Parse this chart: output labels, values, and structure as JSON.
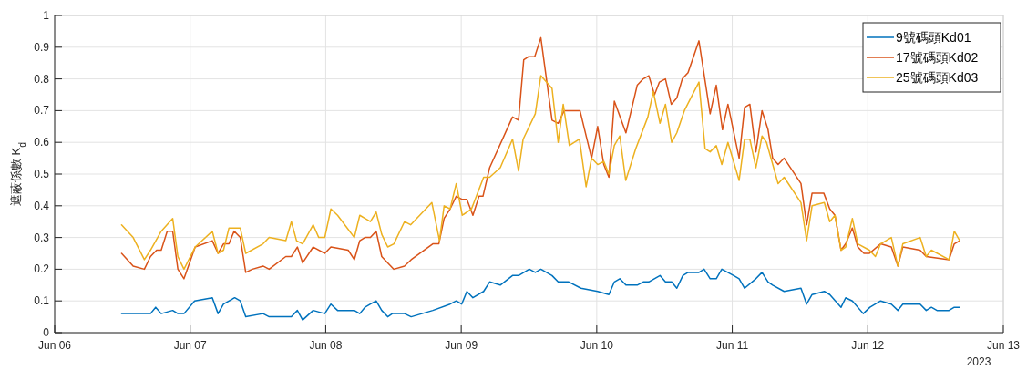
{
  "chart_data": {
    "type": "line",
    "ylabel": "遮蔽係數 K$_{d}$",
    "annotations": [
      "2023"
    ],
    "xlim": [
      "2023-06-06",
      "2023-06-13"
    ],
    "xticks": [
      {
        "value": "2023-06-06",
        "label": "Jun 06"
      },
      {
        "value": "2023-06-07",
        "label": "Jun 07"
      },
      {
        "value": "2023-06-08",
        "label": "Jun 08"
      },
      {
        "value": "2023-06-09",
        "label": "Jun 09"
      },
      {
        "value": "2023-06-10",
        "label": "Jun 10"
      },
      {
        "value": "2023-06-11",
        "label": "Jun 11"
      },
      {
        "value": "2023-06-12",
        "label": "Jun 12"
      },
      {
        "value": "2023-06-13",
        "label": "Jun 13"
      }
    ],
    "ylim": [
      0,
      1
    ],
    "yticks": [
      0,
      0.1,
      0.2,
      0.3,
      0.4,
      0.5,
      0.6,
      0.7,
      0.8,
      0.9,
      1
    ],
    "grid": true,
    "legend": "top right",
    "marker": "none",
    "line_style": "solid",
    "series": [
      {
        "name": "9號碼頭Kd01",
        "color": "#0072bd",
        "x": [
          "2023-06-06T11:51",
          "2023-06-06T15:53",
          "2023-06-06T16:58",
          "2023-06-06T17:53",
          "2023-06-06T18:52",
          "2023-06-06T20:54",
          "2023-06-06T21:49",
          "2023-06-06T22:54",
          "2023-06-07T00:47",
          "2023-06-07T03:55",
          "2023-06-07T04:56",
          "2023-06-07T05:54",
          "2023-06-07T07:53",
          "2023-06-07T08:52",
          "2023-06-07T09:50",
          "2023-06-07T12:54",
          "2023-06-07T13:59",
          "2023-06-07T17:55",
          "2023-06-07T18:59",
          "2023-06-07T19:55",
          "2023-06-07T21:47",
          "2023-06-07T23:50",
          "2023-06-08T00:55",
          "2023-06-08T02:06",
          "2023-06-08T05:04",
          "2023-06-08T06:02",
          "2023-06-08T06:57",
          "2023-06-08T07:55",
          "2023-06-08T08:56",
          "2023-06-08T09:55",
          "2023-06-08T10:59",
          "2023-06-08T11:48",
          "2023-06-08T13:57",
          "2023-06-08T15:08",
          "2023-06-08T18:58",
          "2023-06-08T22:02",
          "2023-06-08T23:07",
          "2023-06-09T00:05",
          "2023-06-09T01:00",
          "2023-06-09T02:04",
          "2023-06-09T03:58",
          "2023-06-09T05:02",
          "2023-06-09T06:55",
          "2023-06-09T09:05",
          "2023-06-09T10:09",
          "2023-06-09T12:03",
          "2023-06-09T13:07",
          "2023-06-09T14:06",
          "2023-06-09T16:05",
          "2023-06-09T17:10",
          "2023-06-09T19:03",
          "2023-06-09T21:12",
          "2023-06-10T00:10",
          "2023-06-10T02:09",
          "2023-06-10T03:07",
          "2023-06-10T04:05",
          "2023-06-10T05:10",
          "2023-06-10T07:10",
          "2023-06-10T08:14",
          "2023-06-10T09:13",
          "2023-06-10T11:12",
          "2023-06-10T12:10",
          "2023-06-10T13:16",
          "2023-06-10T14:11",
          "2023-06-10T15:15",
          "2023-06-10T16:10",
          "2023-06-10T18:06",
          "2023-06-10T19:01",
          "2023-06-10T20:05",
          "2023-06-10T21:10",
          "2023-06-10T22:09",
          "2023-06-11T00:15",
          "2023-06-11T01:13",
          "2023-06-11T02:11",
          "2023-06-11T04:11",
          "2023-06-11T05:16",
          "2023-06-11T06:20",
          "2023-06-11T07:09",
          "2023-06-11T09:11",
          "2023-06-11T12:10",
          "2023-06-11T13:10",
          "2023-06-11T14:08",
          "2023-06-11T16:18",
          "2023-06-11T17:16",
          "2023-06-11T19:16",
          "2023-06-11T20:05",
          "2023-06-11T21:16",
          "2023-06-11T23:12",
          "2023-06-12T00:23",
          "2023-06-12T02:16",
          "2023-06-12T04:10",
          "2023-06-12T05:20",
          "2023-06-12T06:12",
          "2023-06-12T09:16",
          "2023-06-12T10:21",
          "2023-06-12T11:16",
          "2023-06-12T12:15",
          "2023-06-12T14:23",
          "2023-06-12T15:19",
          "2023-06-12T16:17"
        ],
        "values": [
          0.06,
          0.06,
          0.06,
          0.08,
          0.06,
          0.07,
          0.06,
          0.06,
          0.1,
          0.11,
          0.06,
          0.09,
          0.11,
          0.1,
          0.05,
          0.06,
          0.05,
          0.05,
          0.07,
          0.04,
          0.07,
          0.06,
          0.09,
          0.07,
          0.07,
          0.06,
          0.08,
          0.09,
          0.1,
          0.07,
          0.05,
          0.06,
          0.06,
          0.05,
          0.07,
          0.09,
          0.1,
          0.09,
          0.13,
          0.11,
          0.13,
          0.16,
          0.15,
          0.18,
          0.18,
          0.2,
          0.19,
          0.2,
          0.18,
          0.16,
          0.16,
          0.14,
          0.13,
          0.12,
          0.16,
          0.17,
          0.15,
          0.15,
          0.16,
          0.16,
          0.18,
          0.16,
          0.16,
          0.14,
          0.18,
          0.19,
          0.19,
          0.2,
          0.17,
          0.17,
          0.2,
          0.18,
          0.17,
          0.14,
          0.17,
          0.19,
          0.16,
          0.15,
          0.13,
          0.14,
          0.09,
          0.12,
          0.13,
          0.12,
          0.08,
          0.11,
          0.1,
          0.06,
          0.08,
          0.1,
          0.09,
          0.07,
          0.09,
          0.09,
          0.07,
          0.08,
          0.07,
          0.07,
          0.08,
          0.08
        ]
      },
      {
        "name": "17號碼頭Kd02",
        "color": "#d95319",
        "x": [
          "2023-06-06T11:51",
          "2023-06-06T13:54",
          "2023-06-06T15:53",
          "2023-06-06T16:58",
          "2023-06-06T18:03",
          "2023-06-06T18:52",
          "2023-06-06T19:56",
          "2023-06-06T20:54",
          "2023-06-06T21:49",
          "2023-06-06T22:54",
          "2023-06-07T00:53",
          "2023-06-07T03:55",
          "2023-06-07T04:56",
          "2023-06-07T05:54",
          "2023-06-07T06:52",
          "2023-06-07T07:47",
          "2023-06-07T08:52",
          "2023-06-07T09:50",
          "2023-06-07T11:01",
          "2023-06-07T12:54",
          "2023-06-07T13:59",
          "2023-06-07T16:56",
          "2023-06-07T17:55",
          "2023-06-07T18:59",
          "2023-06-07T19:55",
          "2023-06-07T21:47",
          "2023-06-07T23:50",
          "2023-06-08T00:55",
          "2023-06-08T03:59",
          "2023-06-08T05:04",
          "2023-06-08T06:02",
          "2023-06-08T06:57",
          "2023-06-08T07:55",
          "2023-06-08T08:56",
          "2023-06-08T09:55",
          "2023-06-08T10:59",
          "2023-06-08T12:04",
          "2023-06-08T13:57",
          "2023-06-08T15:08",
          "2023-06-08T18:58",
          "2023-06-08T20:02",
          "2023-06-08T20:58",
          "2023-06-08T22:02",
          "2023-06-08T23:07",
          "2023-06-09T00:11",
          "2023-06-09T01:00",
          "2023-06-09T02:04",
          "2023-06-09T03:09",
          "2023-06-09T03:51",
          "2023-06-09T05:02",
          "2023-06-09T09:05",
          "2023-06-09T10:09",
          "2023-06-09T11:04",
          "2023-06-09T11:56",
          "2023-06-09T13:01",
          "2023-06-09T14:06",
          "2023-06-09T16:05",
          "2023-06-09T17:10",
          "2023-06-09T18:14",
          "2023-06-09T21:02",
          "2023-06-09T23:05",
          "2023-06-10T00:10",
          "2023-06-10T01:15",
          "2023-06-10T02:09",
          "2023-06-10T03:07",
          "2023-06-10T05:10",
          "2023-06-10T07:10",
          "2023-06-10T08:14",
          "2023-06-10T09:13",
          "2023-06-10T10:14",
          "2023-06-10T11:06",
          "2023-06-10T12:10",
          "2023-06-10T13:12",
          "2023-06-10T14:11",
          "2023-06-10T15:09",
          "2023-06-10T16:10",
          "2023-06-10T18:06",
          "2023-06-10T20:05",
          "2023-06-10T21:10",
          "2023-06-10T22:16",
          "2023-06-10T23:14",
          "2023-06-11T01:13",
          "2023-06-11T02:11",
          "2023-06-11T03:07",
          "2023-06-11T04:11",
          "2023-06-11T05:16",
          "2023-06-11T06:20",
          "2023-06-11T07:09",
          "2023-06-11T08:07",
          "2023-06-11T09:11",
          "2023-06-11T12:10",
          "2023-06-11T13:10",
          "2023-06-11T14:08",
          "2023-06-11T16:12",
          "2023-06-11T17:16",
          "2023-06-11T18:11",
          "2023-06-11T19:16",
          "2023-06-11T20:05",
          "2023-06-11T21:16",
          "2023-06-11T22:14",
          "2023-06-11T23:19",
          "2023-06-12T00:17",
          "2023-06-12T02:16",
          "2023-06-12T04:10",
          "2023-06-12T05:20",
          "2023-06-12T06:12",
          "2023-06-12T09:16",
          "2023-06-12T10:21",
          "2023-06-12T14:23",
          "2023-06-12T15:19",
          "2023-06-12T16:17"
        ],
        "values": [
          0.25,
          0.21,
          0.2,
          0.24,
          0.26,
          0.26,
          0.32,
          0.32,
          0.2,
          0.17,
          0.27,
          0.29,
          0.25,
          0.28,
          0.28,
          0.32,
          0.3,
          0.19,
          0.2,
          0.21,
          0.2,
          0.24,
          0.24,
          0.27,
          0.22,
          0.27,
          0.25,
          0.27,
          0.26,
          0.23,
          0.29,
          0.3,
          0.3,
          0.32,
          0.24,
          0.22,
          0.2,
          0.21,
          0.23,
          0.28,
          0.28,
          0.36,
          0.39,
          0.43,
          0.42,
          0.42,
          0.37,
          0.43,
          0.43,
          0.52,
          0.68,
          0.67,
          0.86,
          0.87,
          0.87,
          0.93,
          0.67,
          0.66,
          0.7,
          0.7,
          0.55,
          0.65,
          0.53,
          0.49,
          0.73,
          0.63,
          0.78,
          0.8,
          0.81,
          0.75,
          0.79,
          0.8,
          0.72,
          0.74,
          0.8,
          0.82,
          0.92,
          0.69,
          0.78,
          0.64,
          0.72,
          0.55,
          0.71,
          0.72,
          0.57,
          0.7,
          0.64,
          0.55,
          0.53,
          0.55,
          0.47,
          0.34,
          0.44,
          0.44,
          0.39,
          0.37,
          0.26,
          0.28,
          0.33,
          0.27,
          0.25,
          0.25,
          0.28,
          0.27,
          0.21,
          0.27,
          0.26,
          0.24,
          0.23,
          0.28,
          0.29
        ]
      },
      {
        "name": "25號碼頭Kd03",
        "color": "#edb120",
        "x": [
          "2023-06-06T11:51",
          "2023-06-06T13:54",
          "2023-06-06T15:53",
          "2023-06-06T16:58",
          "2023-06-06T18:52",
          "2023-06-06T20:54",
          "2023-06-06T21:49",
          "2023-06-06T22:54",
          "2023-06-07T00:53",
          "2023-06-07T03:55",
          "2023-06-07T04:56",
          "2023-06-07T05:54",
          "2023-06-07T06:52",
          "2023-06-07T08:52",
          "2023-06-07T09:50",
          "2023-06-07T12:54",
          "2023-06-07T13:59",
          "2023-06-07T16:56",
          "2023-06-07T17:55",
          "2023-06-07T18:50",
          "2023-06-07T19:55",
          "2023-06-07T21:47",
          "2023-06-07T22:46",
          "2023-06-07T23:50",
          "2023-06-08T00:55",
          "2023-06-08T02:06",
          "2023-06-08T05:04",
          "2023-06-08T06:02",
          "2023-06-08T06:57",
          "2023-06-08T07:55",
          "2023-06-08T08:56",
          "2023-06-08T09:55",
          "2023-06-08T10:59",
          "2023-06-08T12:04",
          "2023-06-08T13:57",
          "2023-06-08T15:02",
          "2023-06-08T18:48",
          "2023-06-08T20:09",
          "2023-06-08T20:58",
          "2023-06-08T22:02",
          "2023-06-08T23:07",
          "2023-06-09T00:11",
          "2023-06-09T01:49",
          "2023-06-09T03:58",
          "2023-06-09T05:02",
          "2023-06-09T06:55",
          "2023-06-09T09:05",
          "2023-06-09T10:09",
          "2023-06-09T10:58",
          "2023-06-09T13:07",
          "2023-06-09T14:06",
          "2023-06-09T16:05",
          "2023-06-09T17:10",
          "2023-06-09T18:04",
          "2023-06-09T19:09",
          "2023-06-09T20:56",
          "2023-06-09T22:07",
          "2023-06-09T23:05",
          "2023-06-10T00:10",
          "2023-06-10T01:15",
          "2023-06-10T02:09",
          "2023-06-10T03:07",
          "2023-06-10T04:05",
          "2023-06-10T05:08",
          "2023-06-10T06:54",
          "2023-06-10T09:03",
          "2023-06-10T10:01",
          "2023-06-10T11:12",
          "2023-06-10T12:10",
          "2023-06-10T13:16",
          "2023-06-10T14:11",
          "2023-06-10T15:31",
          "2023-06-10T18:06",
          "2023-06-10T19:11",
          "2023-06-10T20:05",
          "2023-06-10T21:10",
          "2023-06-10T22:09",
          "2023-06-10T23:14",
          "2023-06-11T01:13",
          "2023-06-11T02:11",
          "2023-06-11T03:07",
          "2023-06-11T04:11",
          "2023-06-11T05:16",
          "2023-06-11T06:04",
          "2023-06-11T08:07",
          "2023-06-11T09:11",
          "2023-06-11T12:10",
          "2023-06-11T13:10",
          "2023-06-11T14:08",
          "2023-06-11T16:18",
          "2023-06-11T17:16",
          "2023-06-11T18:11",
          "2023-06-11T19:16",
          "2023-06-11T20:05",
          "2023-06-11T21:16",
          "2023-06-11T22:14",
          "2023-06-12T00:17",
          "2023-06-12T01:21",
          "2023-06-12T02:16",
          "2023-06-12T04:10",
          "2023-06-12T05:20",
          "2023-06-12T06:12",
          "2023-06-12T09:16",
          "2023-06-12T10:21",
          "2023-06-12T11:16",
          "2023-06-12T14:23",
          "2023-06-12T15:19",
          "2023-06-12T16:17"
        ],
        "values": [
          0.34,
          0.3,
          0.23,
          0.26,
          0.32,
          0.36,
          0.24,
          0.2,
          0.27,
          0.32,
          0.25,
          0.26,
          0.33,
          0.33,
          0.25,
          0.28,
          0.3,
          0.29,
          0.35,
          0.29,
          0.28,
          0.34,
          0.3,
          0.3,
          0.39,
          0.37,
          0.3,
          0.37,
          0.36,
          0.35,
          0.38,
          0.31,
          0.27,
          0.28,
          0.35,
          0.34,
          0.41,
          0.29,
          0.4,
          0.39,
          0.47,
          0.37,
          0.39,
          0.49,
          0.49,
          0.52,
          0.61,
          0.51,
          0.61,
          0.69,
          0.81,
          0.77,
          0.6,
          0.72,
          0.59,
          0.61,
          0.46,
          0.55,
          0.53,
          0.54,
          0.5,
          0.59,
          0.62,
          0.48,
          0.58,
          0.68,
          0.76,
          0.66,
          0.72,
          0.6,
          0.63,
          0.7,
          0.79,
          0.58,
          0.57,
          0.59,
          0.53,
          0.6,
          0.48,
          0.61,
          0.61,
          0.52,
          0.62,
          0.6,
          0.47,
          0.49,
          0.41,
          0.29,
          0.4,
          0.41,
          0.35,
          0.37,
          0.26,
          0.27,
          0.36,
          0.28,
          0.26,
          0.24,
          0.28,
          0.3,
          0.21,
          0.28,
          0.3,
          0.24,
          0.26,
          0.23,
          0.32,
          0.29
        ]
      }
    ]
  }
}
